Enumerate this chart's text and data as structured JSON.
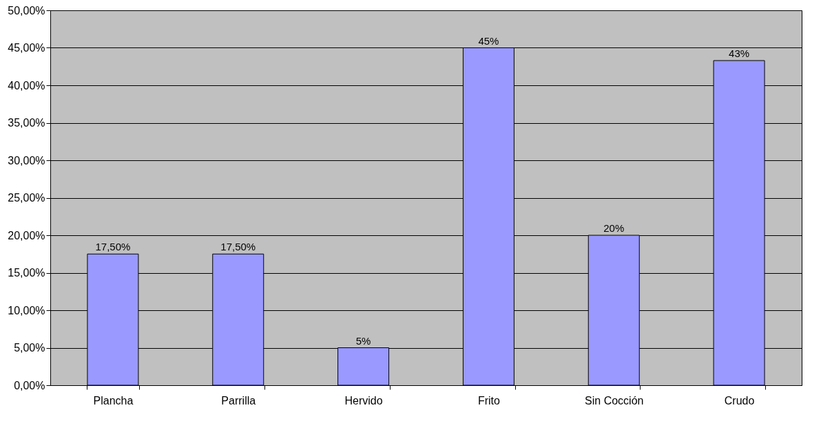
{
  "chart_data": {
    "type": "bar",
    "categories": [
      "Plancha",
      "Parrilla",
      "Hervido",
      "Frito",
      "Sin Cocción",
      "Crudo"
    ],
    "values": [
      17.5,
      17.5,
      5,
      45,
      20,
      43.3
    ],
    "value_labels": [
      "17,50%",
      "17,50%",
      "5%",
      "45%",
      "20%",
      "43%"
    ],
    "color": "#9999ff",
    "ylim": [
      0,
      50
    ],
    "yticks": [
      {
        "value": 0,
        "label": "0,00%"
      },
      {
        "value": 5,
        "label": "5,00%"
      },
      {
        "value": 10,
        "label": "10,00%"
      },
      {
        "value": 15,
        "label": "15,00%"
      },
      {
        "value": 20,
        "label": "20,00%"
      },
      {
        "value": 25,
        "label": "25,00%"
      },
      {
        "value": 30,
        "label": "30,00%"
      },
      {
        "value": 35,
        "label": "35,00%"
      },
      {
        "value": 40,
        "label": "40,00%"
      },
      {
        "value": 45,
        "label": "45,00%"
      },
      {
        "value": 50,
        "label": "50,00%"
      }
    ],
    "grid": "y"
  }
}
